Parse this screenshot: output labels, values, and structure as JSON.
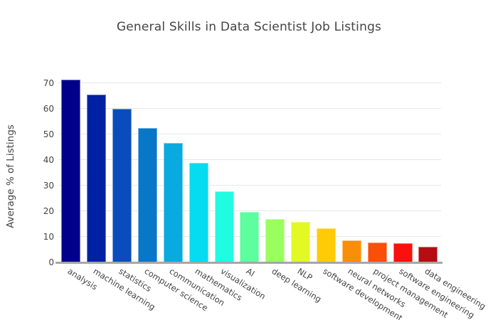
{
  "chart_data": {
    "type": "bar",
    "title": "General Skills in Data Scientist Job Listings",
    "xlabel": "",
    "ylabel": "Average % of Listings",
    "categories": [
      "analysis",
      "machine learning",
      "statistics",
      "computer science",
      "communication",
      "mathematics",
      "visualization",
      "AI",
      "deep learning",
      "NLP",
      "software development",
      "neural networks",
      "project management",
      "software engineering",
      "data engineering"
    ],
    "values": [
      71.3,
      65.5,
      59.9,
      52.5,
      46.7,
      38.9,
      27.9,
      19.8,
      17.0,
      15.9,
      13.3,
      8.7,
      7.7,
      7.4,
      6.2
    ],
    "bar_colors": [
      "#00008B",
      "#0021A3",
      "#0A4CBB",
      "#0877C8",
      "#09AADF",
      "#06DCEF",
      "#21FBE2",
      "#5EFD9E",
      "#9AFE5E",
      "#E2F926",
      "#FECB06",
      "#FB8E08",
      "#FB4E0B",
      "#FA100C",
      "#B50D12"
    ],
    "yticks": [
      0,
      10,
      20,
      30,
      40,
      50,
      60,
      70
    ],
    "ylim": [
      0,
      75
    ],
    "grid": true,
    "legend_visible": false,
    "style": {
      "title_color": "#444444",
      "axis_text_color": "#444444",
      "gridline_color": "#e8e8e8",
      "axis_line_color": "#a6a6a6",
      "background": "#ffffff"
    }
  }
}
